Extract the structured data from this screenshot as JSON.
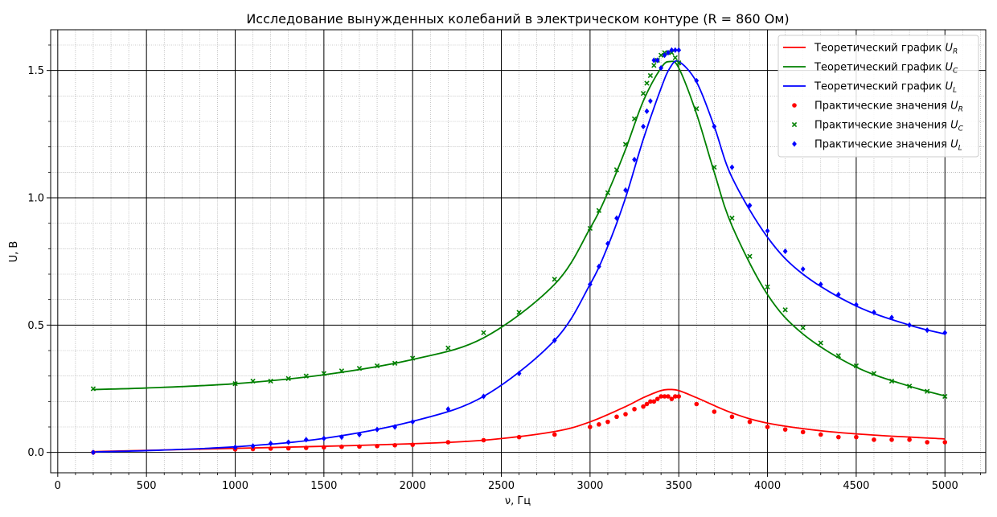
{
  "chart_data": {
    "type": "line",
    "title": "Исследование вынужденных колебаний в электрическом контуре (R = 860 Ом)",
    "xlabel": "ν, Гц",
    "ylabel": "U, В",
    "xlim": [
      -40,
      5230
    ],
    "ylim": [
      -0.08,
      1.66
    ],
    "x_ticks": [
      0,
      500,
      1000,
      1500,
      2000,
      2500,
      3000,
      3500,
      4000,
      4500,
      5000
    ],
    "y_ticks": [
      0.0,
      0.5,
      1.0,
      1.5
    ],
    "x_tick_labels": [
      "0",
      "500",
      "1000",
      "1500",
      "2000",
      "2500",
      "3000",
      "3500",
      "4000",
      "4500",
      "5000"
    ],
    "y_tick_labels": [
      "0.0",
      "0.5",
      "1.0",
      "1.5"
    ],
    "grid": {
      "major": true,
      "minor": true
    },
    "legend_position": "top-right",
    "colors": {
      "ur": "#ff0000",
      "uc": "#008000",
      "ul": "#0000ff",
      "xlabel": "#0000ff",
      "ylabel": "#ff0000"
    },
    "lines": [
      {
        "name_prefix": "Теоретический график ",
        "name_var": "U",
        "name_sub": "R",
        "color": "#ff0000",
        "x": [
          200,
          500,
          1000,
          1500,
          2000,
          2400,
          2800,
          3000,
          3200,
          3300,
          3400,
          3450,
          3500,
          3600,
          3800,
          4000,
          4300,
          4600,
          5000
        ],
        "y": [
          0.003,
          0.008,
          0.016,
          0.024,
          0.034,
          0.048,
          0.082,
          0.12,
          0.18,
          0.215,
          0.243,
          0.247,
          0.243,
          0.215,
          0.155,
          0.115,
          0.085,
          0.068,
          0.053
        ]
      },
      {
        "name_prefix": "Теоретический график ",
        "name_var": "U",
        "name_sub": "C",
        "color": "#008000",
        "x": [
          200,
          500,
          1000,
          1500,
          2000,
          2400,
          2800,
          3000,
          3100,
          3200,
          3300,
          3400,
          3450,
          3500,
          3600,
          3700,
          3800,
          4000,
          4200,
          4500,
          4800,
          5000
        ],
        "y": [
          0.247,
          0.253,
          0.27,
          0.305,
          0.365,
          0.45,
          0.66,
          0.88,
          1.02,
          1.19,
          1.38,
          1.51,
          1.535,
          1.51,
          1.33,
          1.1,
          0.89,
          0.62,
          0.465,
          0.335,
          0.26,
          0.222
        ]
      },
      {
        "name_prefix": "Теоретический график ",
        "name_var": "U",
        "name_sub": "L",
        "color": "#0000ff",
        "x": [
          200,
          500,
          1000,
          1500,
          2000,
          2400,
          2800,
          3000,
          3100,
          3200,
          3300,
          3400,
          3450,
          3500,
          3600,
          3700,
          3800,
          4000,
          4200,
          4500,
          4800,
          5000
        ],
        "y": [
          0.002,
          0.007,
          0.022,
          0.055,
          0.122,
          0.22,
          0.44,
          0.66,
          0.81,
          1.0,
          1.23,
          1.43,
          1.51,
          1.535,
          1.455,
          1.28,
          1.08,
          0.845,
          0.7,
          0.575,
          0.5,
          0.465
        ]
      }
    ],
    "scatter": [
      {
        "name_prefix": "Практические значения ",
        "name_var": "U",
        "name_sub": "R",
        "color": "#ff0000",
        "marker": "circle",
        "x": [
          200,
          1000,
          1100,
          1200,
          1300,
          1400,
          1500,
          1600,
          1700,
          1800,
          1900,
          2000,
          2200,
          2400,
          2600,
          2800,
          3000,
          3050,
          3100,
          3150,
          3200,
          3250,
          3300,
          3320,
          3340,
          3360,
          3380,
          3400,
          3420,
          3440,
          3460,
          3480,
          3500,
          3600,
          3700,
          3800,
          3900,
          4000,
          4100,
          4200,
          4300,
          4400,
          4500,
          4600,
          4700,
          4800,
          4900,
          5000
        ],
        "y": [
          0.0,
          0.012,
          0.013,
          0.015,
          0.016,
          0.018,
          0.02,
          0.022,
          0.023,
          0.025,
          0.028,
          0.03,
          0.04,
          0.048,
          0.06,
          0.07,
          0.1,
          0.11,
          0.12,
          0.14,
          0.15,
          0.17,
          0.18,
          0.19,
          0.2,
          0.2,
          0.21,
          0.22,
          0.22,
          0.22,
          0.21,
          0.22,
          0.22,
          0.19,
          0.16,
          0.14,
          0.12,
          0.1,
          0.09,
          0.08,
          0.07,
          0.06,
          0.06,
          0.05,
          0.05,
          0.05,
          0.04,
          0.04
        ]
      },
      {
        "name_prefix": "Практические значения ",
        "name_var": "U",
        "name_sub": "C",
        "color": "#008000",
        "marker": "x",
        "x": [
          200,
          1000,
          1100,
          1200,
          1300,
          1400,
          1500,
          1600,
          1700,
          1800,
          1900,
          2000,
          2200,
          2400,
          2600,
          2800,
          3000,
          3050,
          3100,
          3150,
          3200,
          3250,
          3300,
          3320,
          3340,
          3360,
          3380,
          3400,
          3420,
          3440,
          3460,
          3480,
          3500,
          3600,
          3700,
          3800,
          3900,
          4000,
          4100,
          4200,
          4300,
          4400,
          4500,
          4600,
          4700,
          4800,
          4900,
          5000
        ],
        "y": [
          0.25,
          0.27,
          0.28,
          0.28,
          0.29,
          0.3,
          0.31,
          0.32,
          0.33,
          0.34,
          0.35,
          0.37,
          0.41,
          0.47,
          0.55,
          0.68,
          0.88,
          0.95,
          1.02,
          1.11,
          1.21,
          1.31,
          1.41,
          1.45,
          1.48,
          1.52,
          1.54,
          1.56,
          1.57,
          1.57,
          1.57,
          1.55,
          1.53,
          1.35,
          1.12,
          0.92,
          0.77,
          0.65,
          0.56,
          0.49,
          0.43,
          0.38,
          0.34,
          0.31,
          0.28,
          0.26,
          0.24,
          0.22
        ]
      },
      {
        "name_prefix": "Практические значения ",
        "name_var": "U",
        "name_sub": "L",
        "color": "#0000ff",
        "marker": "diamond",
        "x": [
          200,
          1000,
          1100,
          1200,
          1300,
          1400,
          1500,
          1600,
          1700,
          1800,
          1900,
          2000,
          2200,
          2400,
          2600,
          2800,
          3000,
          3050,
          3100,
          3150,
          3200,
          3250,
          3300,
          3320,
          3340,
          3360,
          3380,
          3400,
          3420,
          3440,
          3460,
          3480,
          3500,
          3600,
          3700,
          3800,
          3900,
          4000,
          4100,
          4200,
          4300,
          4400,
          4500,
          4600,
          4700,
          4800,
          4900,
          5000
        ],
        "y": [
          0.0,
          0.02,
          0.025,
          0.035,
          0.04,
          0.05,
          0.055,
          0.06,
          0.07,
          0.09,
          0.1,
          0.12,
          0.17,
          0.22,
          0.31,
          0.44,
          0.66,
          0.73,
          0.82,
          0.92,
          1.03,
          1.15,
          1.28,
          1.34,
          1.38,
          1.54,
          1.54,
          1.51,
          1.56,
          1.57,
          1.58,
          1.58,
          1.58,
          1.46,
          1.28,
          1.12,
          0.97,
          0.87,
          0.79,
          0.72,
          0.66,
          0.62,
          0.58,
          0.55,
          0.53,
          0.5,
          0.48,
          0.47
        ]
      }
    ]
  }
}
